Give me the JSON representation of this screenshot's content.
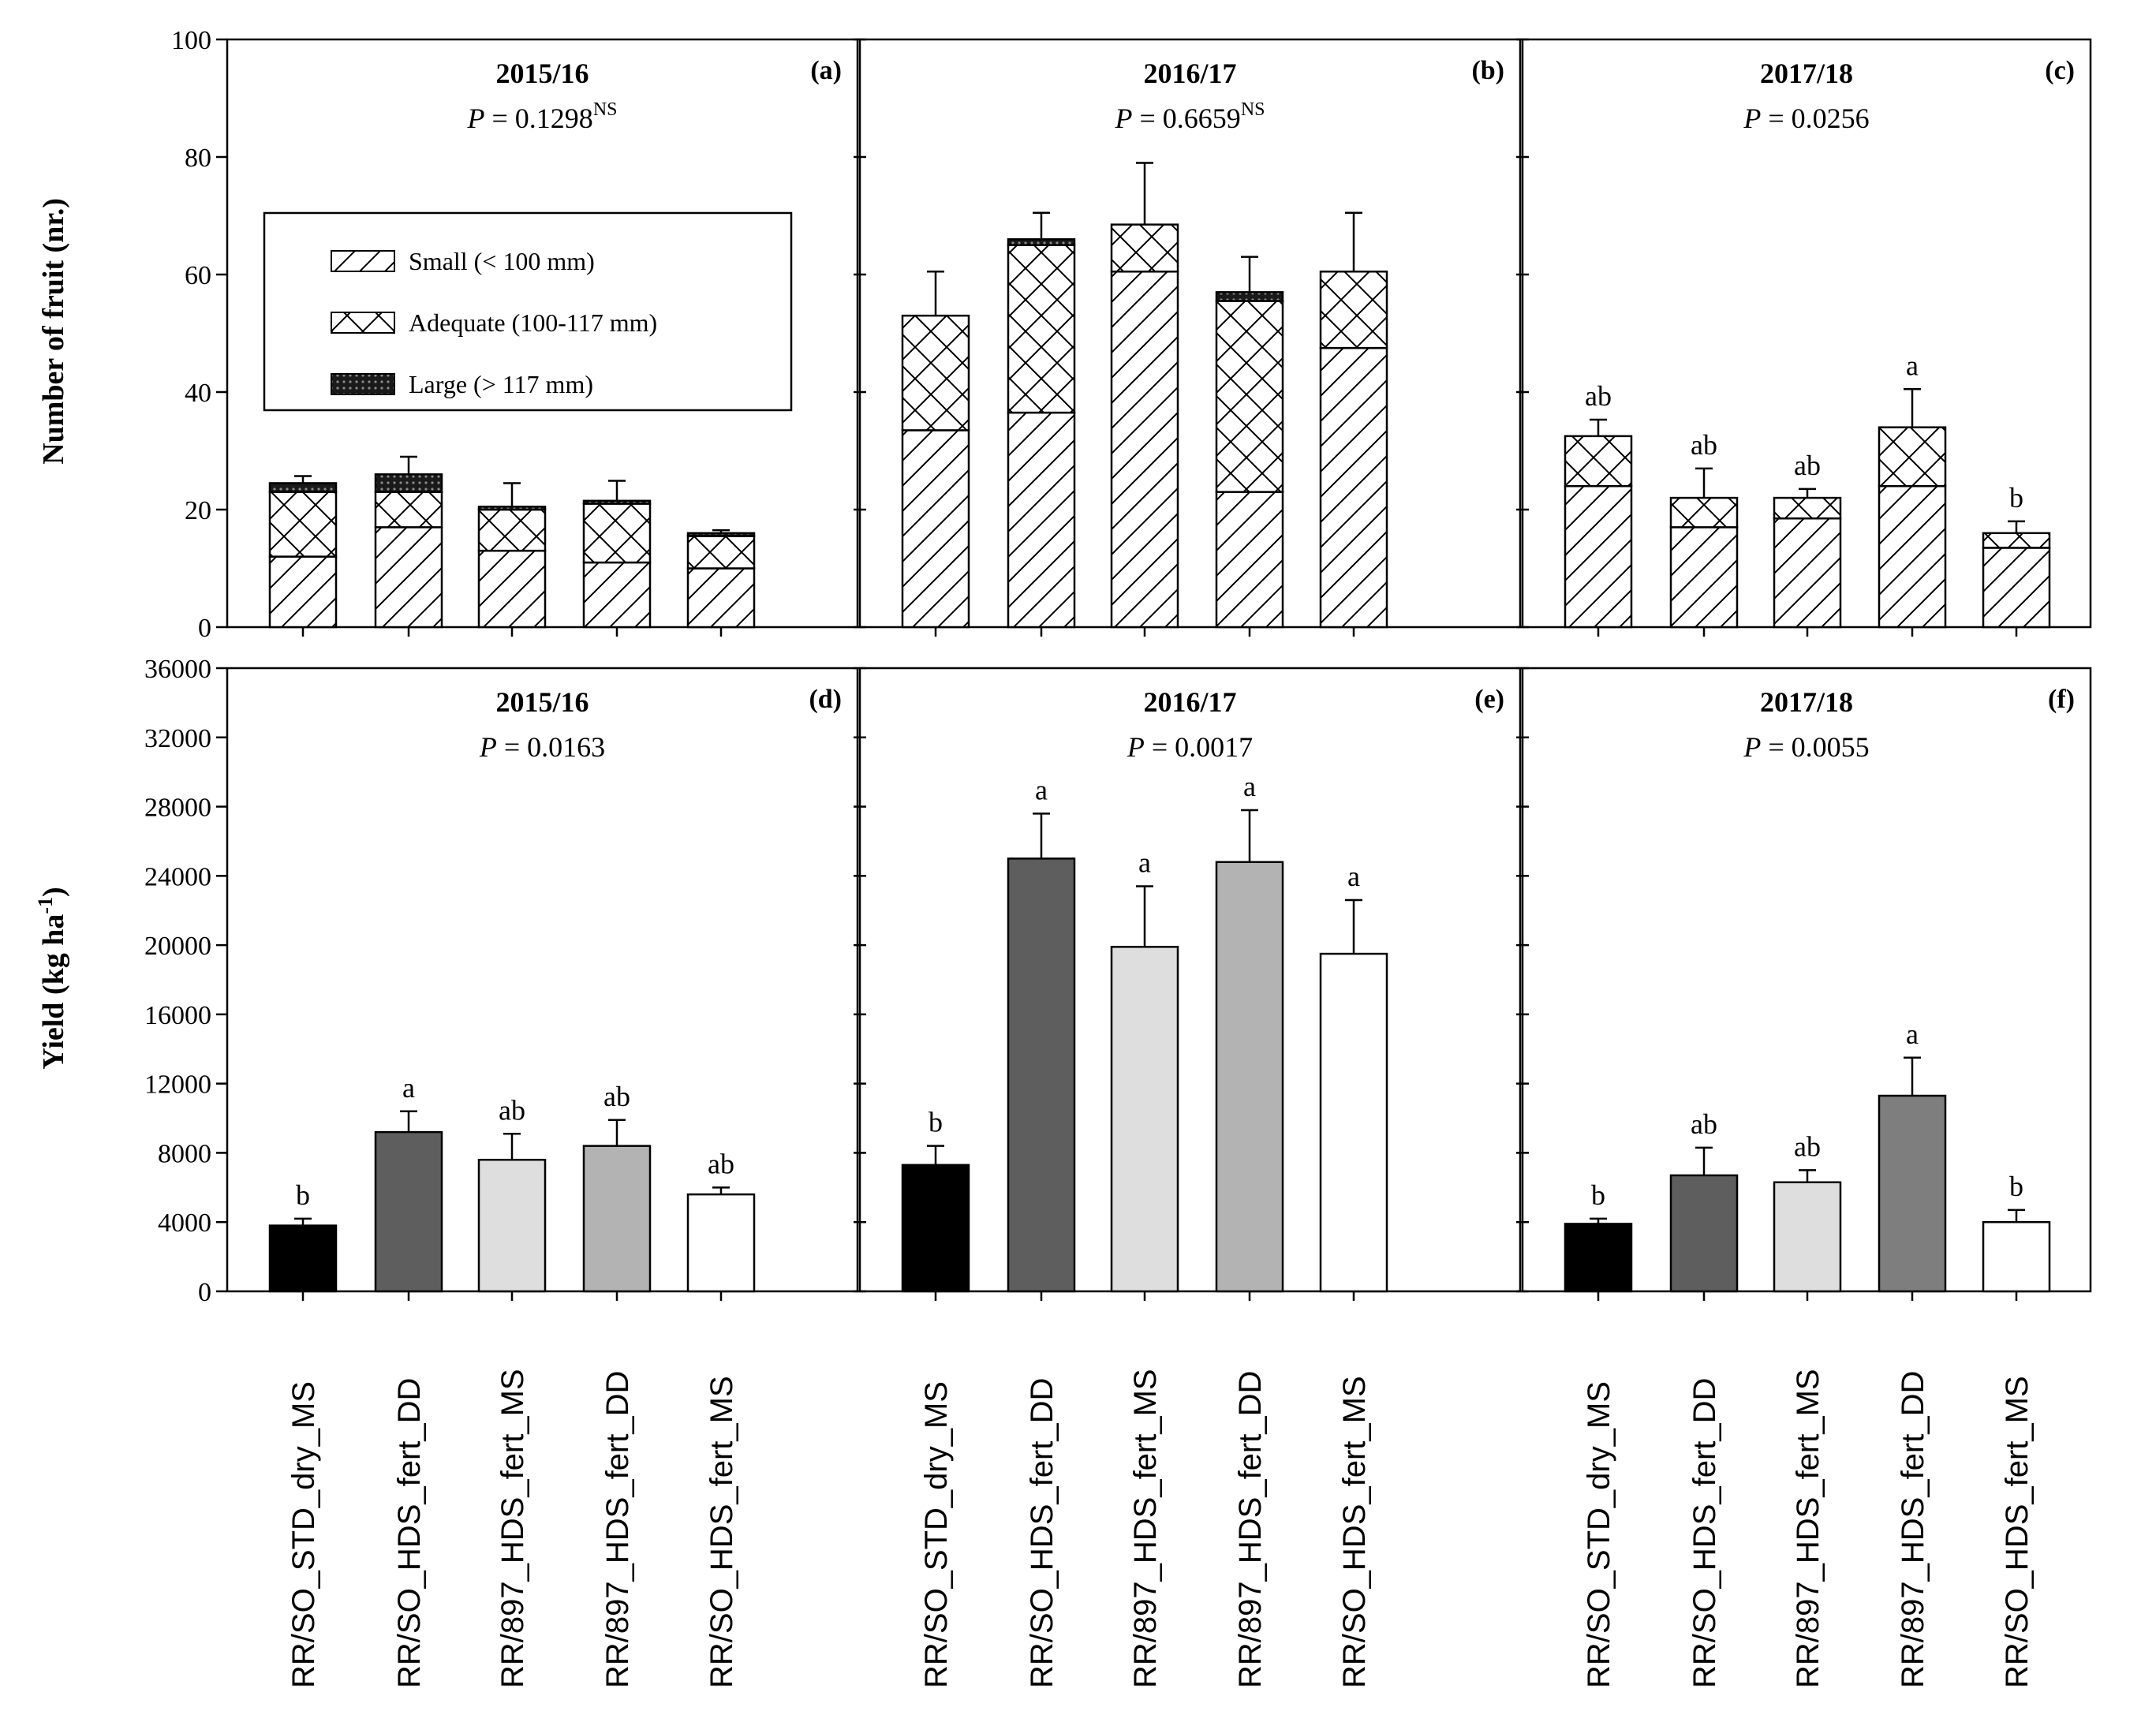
{
  "chart_data": {
    "categories": [
      "RR/SO_STD_dry_MS",
      "RR/SO_HDS_fert_DD",
      "RR/897_HDS_fert_MS",
      "RR/897_HDS_fert_DD",
      "RR/SO_HDS_fert_MS"
    ],
    "top_row": {
      "type": "bar",
      "stacked": true,
      "ylabel": "Number of fruit (nr.)",
      "ylim": [
        0,
        100
      ],
      "yticks": [
        0,
        20,
        40,
        60,
        80,
        100
      ],
      "legend": {
        "position": "top-left",
        "entries": [
          "Small (< 100 mm)",
          "Adequate (100-117 mm)",
          "Large (> 117 mm)"
        ]
      },
      "panels": [
        {
          "letter": "(a)",
          "title": "2015/16",
          "p_prefix": "P",
          "p_text": " = 0.1298",
          "p_superscript": "NS",
          "series": [
            {
              "name": "Small (< 100 mm)",
              "values": [
                12,
                17,
                13,
                11,
                10
              ]
            },
            {
              "name": "Adequate (100-117 mm)",
              "values": [
                11,
                6,
                7,
                10,
                5.5
              ]
            },
            {
              "name": "Large (> 117 mm)",
              "values": [
                1.5,
                3,
                0.5,
                0.5,
                0.5
              ]
            }
          ],
          "errors": [
            1.2,
            3,
            4,
            3.4,
            0.5
          ],
          "sig_letters": [
            "",
            "",
            "",
            "",
            ""
          ]
        },
        {
          "letter": "(b)",
          "title": "2016/17",
          "p_prefix": "P",
          "p_text": " = 0.6659",
          "p_superscript": "NS",
          "series": [
            {
              "name": "Small (< 100 mm)",
              "values": [
                33.5,
                36.5,
                60.5,
                23,
                47.5
              ]
            },
            {
              "name": "Adequate (100-117 mm)",
              "values": [
                19.5,
                28.5,
                8,
                32.5,
                13
              ]
            },
            {
              "name": "Large (> 117 mm)",
              "values": [
                0,
                1,
                0,
                1.5,
                0
              ]
            }
          ],
          "errors": [
            7.5,
            4.5,
            10.5,
            6,
            10
          ],
          "sig_letters": [
            "",
            "",
            "",
            "",
            ""
          ]
        },
        {
          "letter": "(c)",
          "title": "2017/18",
          "p_prefix": "P",
          "p_text": " = 0.0256",
          "p_superscript": "",
          "series": [
            {
              "name": "Small (< 100 mm)",
              "values": [
                24,
                17,
                18.5,
                24,
                13.5
              ]
            },
            {
              "name": "Adequate (100-117 mm)",
              "values": [
                8.5,
                5,
                3.5,
                10,
                2.5
              ]
            },
            {
              "name": "Large (> 117 mm)",
              "values": [
                0,
                0,
                0,
                0,
                0
              ]
            }
          ],
          "errors": [
            2.8,
            5,
            1.5,
            6.5,
            2
          ],
          "sig_letters": [
            "ab",
            "ab",
            "ab",
            "a",
            "b"
          ]
        }
      ]
    },
    "bottom_row": {
      "type": "bar",
      "ylabel": "Yield (kg ha",
      "ylabel_superscript": "-1",
      "ylabel_suffix": ")",
      "ylim": [
        0,
        36000
      ],
      "yticks": [
        0,
        4000,
        8000,
        12000,
        16000,
        20000,
        24000,
        28000,
        32000,
        36000
      ],
      "panels": [
        {
          "letter": "(d)",
          "title": "2015/16",
          "p_prefix": "P",
          "p_text": " = 0.0163",
          "p_superscript": "",
          "values": [
            3800,
            9200,
            7600,
            8400,
            5600
          ],
          "errors": [
            400,
            1200,
            1500,
            1500,
            400
          ],
          "sig_letters": [
            "b",
            "a",
            "ab",
            "ab",
            "ab"
          ]
        },
        {
          "letter": "(e)",
          "title": "2016/17",
          "p_prefix": "P",
          "p_text": " = 0.0017",
          "p_superscript": "",
          "values": [
            7300,
            25000,
            19900,
            24800,
            19500
          ],
          "errors": [
            1100,
            2600,
            3500,
            3000,
            3100
          ],
          "sig_letters": [
            "b",
            "a",
            "a",
            "a",
            "a"
          ]
        },
        {
          "letter": "(f)",
          "title": "2017/18",
          "p_prefix": "P",
          "p_text": " = 0.0055",
          "p_superscript": "",
          "values": [
            3900,
            6700,
            6300,
            11300,
            4000
          ],
          "errors": [
            300,
            1600,
            700,
            2200,
            700
          ],
          "sig_letters": [
            "b",
            "ab",
            "ab",
            "a",
            "b"
          ]
        }
      ]
    },
    "bar_colors": [
      "#000000",
      "#5e5e5e",
      "#dedede",
      "#b3b3b3",
      "#ffffff",
      "#7e7e7e"
    ]
  }
}
